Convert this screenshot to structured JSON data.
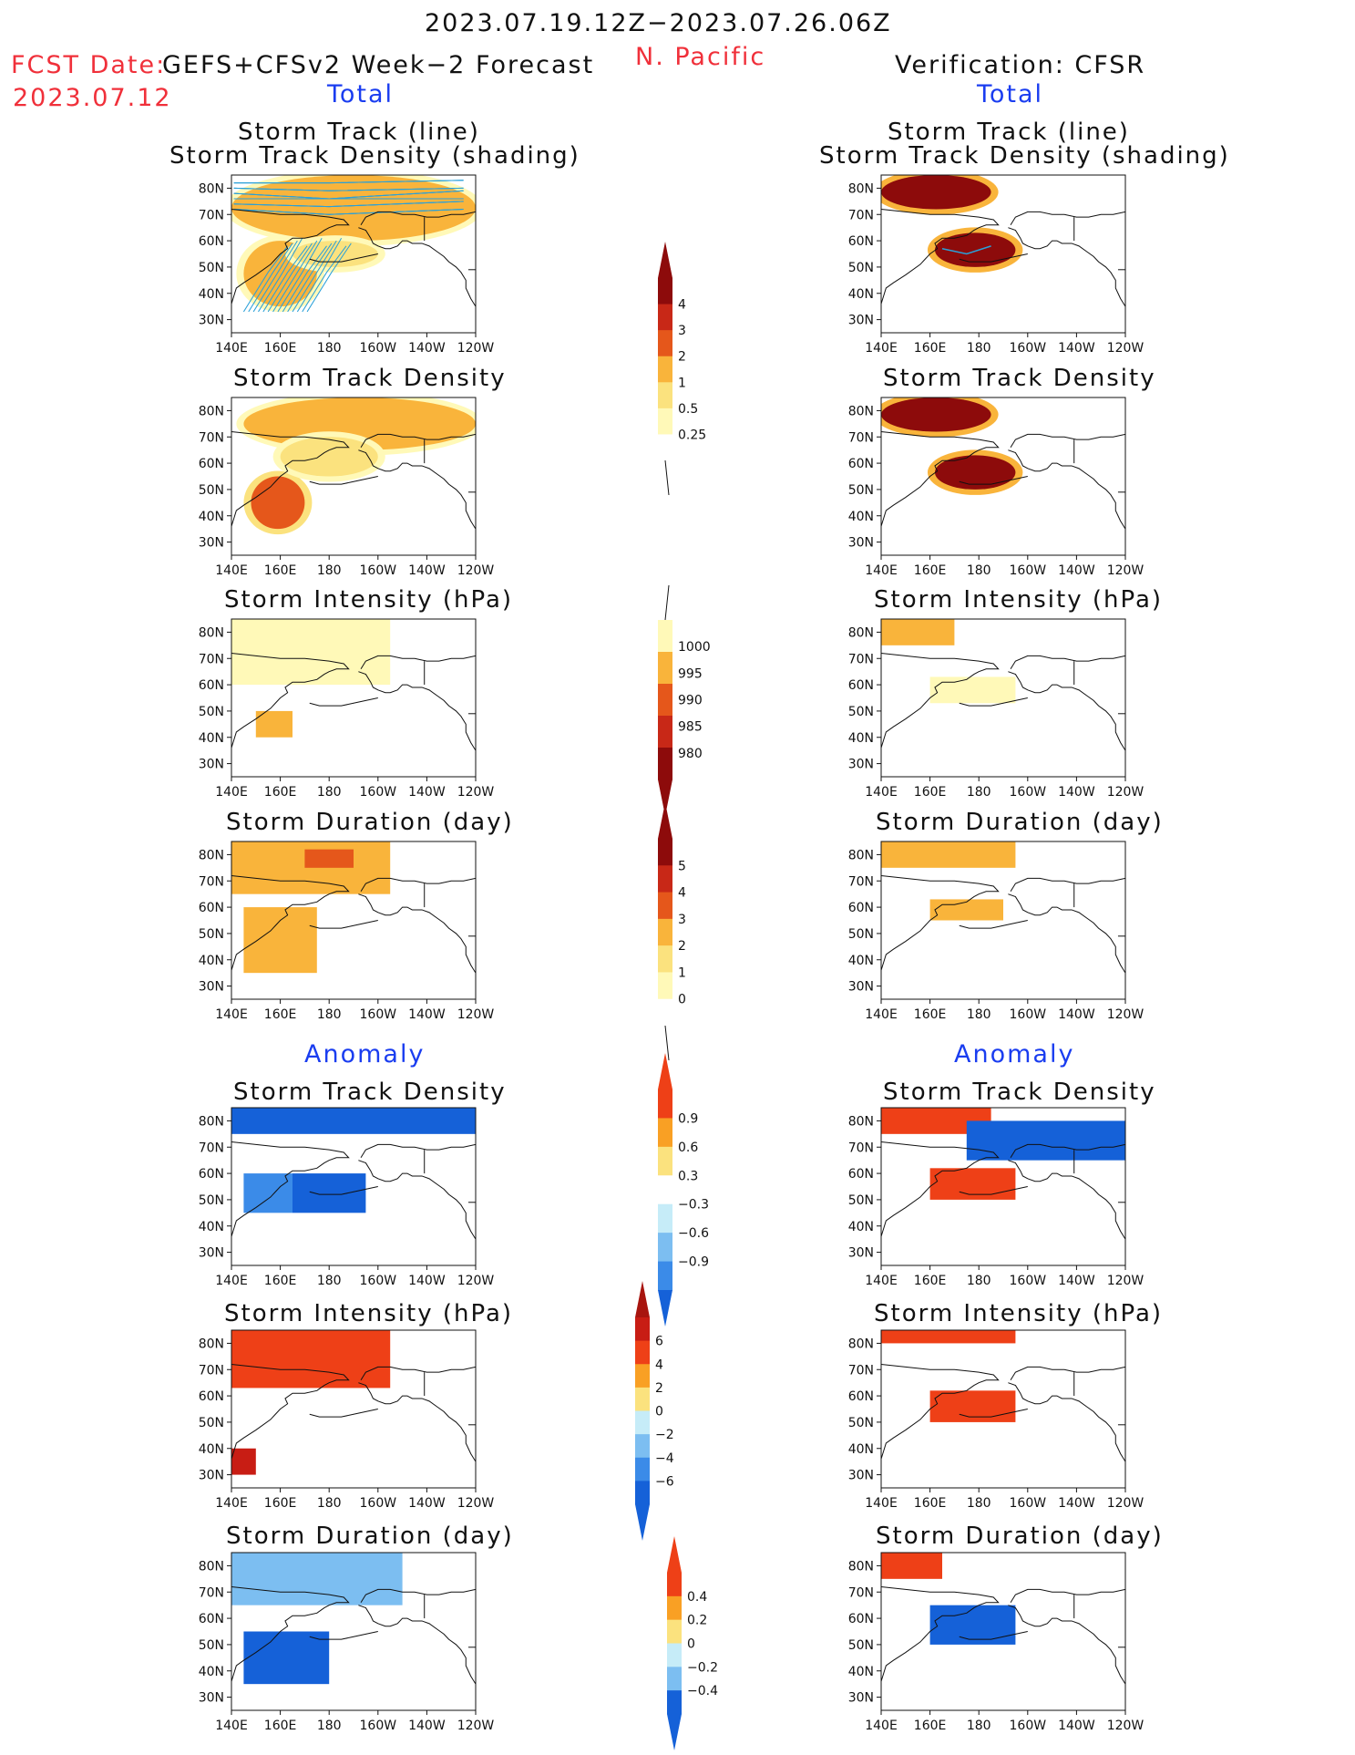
{
  "header": {
    "date_range": "2023.07.19.12Z−2023.07.26.06Z",
    "region": "N. Pacific",
    "fcst_label": "FCST Date:",
    "fcst_model": "GEFS+CFSv2 Week−2 Forecast",
    "fcst_date": "2023.07.12",
    "verification": "Verification: CFSR"
  },
  "sections": {
    "total": "Total",
    "anomaly": "Anomaly"
  },
  "titles": {
    "track_line": "Storm Track (line)",
    "track_shading": "Storm Track Density (shading)",
    "track_density": "Storm Track Density",
    "intensity": "Storm Intensity (hPa)",
    "duration": "Storm Duration (day)"
  },
  "axes": {
    "lat_ticks": [
      "80N",
      "70N",
      "60N",
      "50N",
      "40N",
      "30N"
    ],
    "lon_ticks": [
      "140E",
      "160E",
      "180",
      "160W",
      "140W",
      "120W"
    ]
  },
  "colors": {
    "total_scale": [
      "#fff9b8",
      "#fbe27e",
      "#f9b43b",
      "#f28a1d",
      "#e5571b",
      "#c82817",
      "#8d0b0b"
    ],
    "anom_scale": [
      "#1561d8",
      "#3b8be8",
      "#7cbef1",
      "#c6ecf8",
      "#ffffff",
      "#fbe27e",
      "#f9a024",
      "#ee4017"
    ],
    "map_line": "#111111",
    "track_line": "#2aa0d8"
  },
  "colorbars": {
    "density": [
      "4",
      "3",
      "2",
      "1",
      "0.5",
      "0.25"
    ],
    "intensity": [
      "1000",
      "995",
      "990",
      "985",
      "980"
    ],
    "duration": [
      "5",
      "4",
      "3",
      "2",
      "1",
      "0"
    ],
    "anom_density": [
      "0.9",
      "0.6",
      "0.3",
      "−0.3",
      "−0.6",
      "−0.9"
    ],
    "anom_intensity": [
      "6",
      "4",
      "2",
      "0",
      "−2",
      "−4",
      "−6"
    ],
    "anom_duration": [
      "0.4",
      "0.2",
      "0",
      "−0.2",
      "−0.4"
    ]
  },
  "chart_data": [
    {
      "type": "heatmap",
      "panel": "forecast-total-track",
      "title": "Storm Track (line) / Storm Track Density (shading)",
      "xlabel": "",
      "ylabel": "",
      "x_range": [
        "140E",
        "120W"
      ],
      "y_range": [
        "25N",
        "85N"
      ],
      "regions": [
        {
          "lat": [
            60,
            85
          ],
          "lon": [
            140,
            240
          ],
          "value": 1
        },
        {
          "lat": [
            35,
            60
          ],
          "lon": [
            145,
            175
          ],
          "value": 1.5
        },
        {
          "lat": [
            50,
            60
          ],
          "lon": [
            165,
            200
          ],
          "value": 0.5
        }
      ]
    },
    {
      "type": "heatmap",
      "panel": "verification-total-track",
      "title": "Storm Track (line) / Storm Track Density (shading)",
      "x_range": [
        "140E",
        "120W"
      ],
      "y_range": [
        "25N",
        "85N"
      ],
      "regions": [
        {
          "lat": [
            72,
            85
          ],
          "lon": [
            140,
            185
          ],
          "value": 4
        },
        {
          "lat": [
            50,
            63
          ],
          "lon": [
            162,
            195
          ],
          "value": 4
        }
      ]
    },
    {
      "type": "heatmap",
      "panel": "forecast-total-density",
      "title": "Storm Track Density",
      "x_range": [
        "140E",
        "120W"
      ],
      "y_range": [
        "25N",
        "85N"
      ],
      "regions": [
        {
          "lat": [
            65,
            85
          ],
          "lon": [
            145,
            240
          ],
          "value": 1
        },
        {
          "lat": [
            35,
            55
          ],
          "lon": [
            148,
            170
          ],
          "value": 2
        },
        {
          "lat": [
            55,
            70
          ],
          "lon": [
            160,
            200
          ],
          "value": 0.5
        }
      ]
    },
    {
      "type": "heatmap",
      "panel": "verification-total-density",
      "title": "Storm Track Density",
      "x_range": [
        "140E",
        "120W"
      ],
      "y_range": [
        "25N",
        "85N"
      ],
      "regions": [
        {
          "lat": [
            72,
            85
          ],
          "lon": [
            140,
            185
          ],
          "value": 4
        },
        {
          "lat": [
            50,
            63
          ],
          "lon": [
            162,
            195
          ],
          "value": 4
        }
      ]
    },
    {
      "type": "heatmap",
      "panel": "forecast-total-intensity",
      "title": "Storm Intensity (hPa)",
      "x_range": [
        "140E",
        "120W"
      ],
      "y_range": [
        "25N",
        "85N"
      ],
      "regions": [
        {
          "lat": [
            60,
            85
          ],
          "lon": [
            140,
            205
          ],
          "value": 1000
        },
        {
          "lat": [
            40,
            50
          ],
          "lon": [
            150,
            165
          ],
          "value": 995
        }
      ]
    },
    {
      "type": "heatmap",
      "panel": "verification-total-intensity",
      "title": "Storm Intensity (hPa)",
      "x_range": [
        "140E",
        "120W"
      ],
      "y_range": [
        "25N",
        "85N"
      ],
      "regions": [
        {
          "lat": [
            75,
            85
          ],
          "lon": [
            140,
            170
          ],
          "value": 995
        },
        {
          "lat": [
            53,
            63
          ],
          "lon": [
            160,
            195
          ],
          "value": 1000
        }
      ]
    },
    {
      "type": "heatmap",
      "panel": "forecast-total-duration",
      "title": "Storm Duration (day)",
      "x_range": [
        "140E",
        "120W"
      ],
      "y_range": [
        "25N",
        "85N"
      ],
      "regions": [
        {
          "lat": [
            65,
            85
          ],
          "lon": [
            140,
            205
          ],
          "value": 2
        },
        {
          "lat": [
            35,
            60
          ],
          "lon": [
            145,
            175
          ],
          "value": 2
        },
        {
          "lat": [
            75,
            82
          ],
          "lon": [
            170,
            190
          ],
          "value": 3
        }
      ]
    },
    {
      "type": "heatmap",
      "panel": "verification-total-duration",
      "title": "Storm Duration (day)",
      "x_range": [
        "140E",
        "120W"
      ],
      "y_range": [
        "25N",
        "85N"
      ],
      "regions": [
        {
          "lat": [
            75,
            85
          ],
          "lon": [
            140,
            195
          ],
          "value": 2
        },
        {
          "lat": [
            55,
            63
          ],
          "lon": [
            160,
            190
          ],
          "value": 2
        }
      ]
    },
    {
      "type": "heatmap",
      "panel": "forecast-anom-density",
      "title": "Storm Track Density",
      "x_range": [
        "140E",
        "120W"
      ],
      "y_range": [
        "25N",
        "85N"
      ],
      "regions": [
        {
          "lat": [
            75,
            85
          ],
          "lon": [
            140,
            240
          ],
          "value": -0.9
        },
        {
          "lat": [
            45,
            60
          ],
          "lon": [
            165,
            195
          ],
          "value": -0.9
        },
        {
          "lat": [
            45,
            60
          ],
          "lon": [
            145,
            165
          ],
          "value": -0.6
        }
      ]
    },
    {
      "type": "heatmap",
      "panel": "verification-anom-density",
      "title": "Storm Track Density",
      "x_range": [
        "140E",
        "120W"
      ],
      "y_range": [
        "25N",
        "85N"
      ],
      "regions": [
        {
          "lat": [
            75,
            85
          ],
          "lon": [
            140,
            185
          ],
          "value": 0.9
        },
        {
          "lat": [
            50,
            62
          ],
          "lon": [
            160,
            195
          ],
          "value": 0.9
        },
        {
          "lat": [
            65,
            80
          ],
          "lon": [
            175,
            240
          ],
          "value": -0.9
        }
      ]
    },
    {
      "type": "heatmap",
      "panel": "forecast-anom-intensity",
      "title": "Storm Intensity (hPa)",
      "x_range": [
        "140E",
        "120W"
      ],
      "y_range": [
        "25N",
        "85N"
      ],
      "regions": [
        {
          "lat": [
            63,
            85
          ],
          "lon": [
            140,
            205
          ],
          "value": 4
        },
        {
          "lat": [
            30,
            40
          ],
          "lon": [
            140,
            150
          ],
          "value": 6
        }
      ]
    },
    {
      "type": "heatmap",
      "panel": "verification-anom-intensity",
      "title": "Storm Intensity (hPa)",
      "x_range": [
        "140E",
        "120W"
      ],
      "y_range": [
        "25N",
        "85N"
      ],
      "regions": [
        {
          "lat": [
            80,
            85
          ],
          "lon": [
            140,
            195
          ],
          "value": 4
        },
        {
          "lat": [
            50,
            62
          ],
          "lon": [
            160,
            195
          ],
          "value": 4
        }
      ]
    },
    {
      "type": "heatmap",
      "panel": "forecast-anom-duration",
      "title": "Storm Duration (day)",
      "x_range": [
        "140E",
        "120W"
      ],
      "y_range": [
        "25N",
        "85N"
      ],
      "regions": [
        {
          "lat": [
            65,
            85
          ],
          "lon": [
            140,
            210
          ],
          "value": -0.2
        },
        {
          "lat": [
            35,
            55
          ],
          "lon": [
            145,
            180
          ],
          "value": -0.4
        }
      ]
    },
    {
      "type": "heatmap",
      "panel": "verification-anom-duration",
      "title": "Storm Duration (day)",
      "x_range": [
        "140E",
        "120W"
      ],
      "y_range": [
        "25N",
        "85N"
      ],
      "regions": [
        {
          "lat": [
            75,
            85
          ],
          "lon": [
            140,
            165
          ],
          "value": 0.4
        },
        {
          "lat": [
            50,
            65
          ],
          "lon": [
            160,
            195
          ],
          "value": -0.4
        }
      ]
    }
  ]
}
